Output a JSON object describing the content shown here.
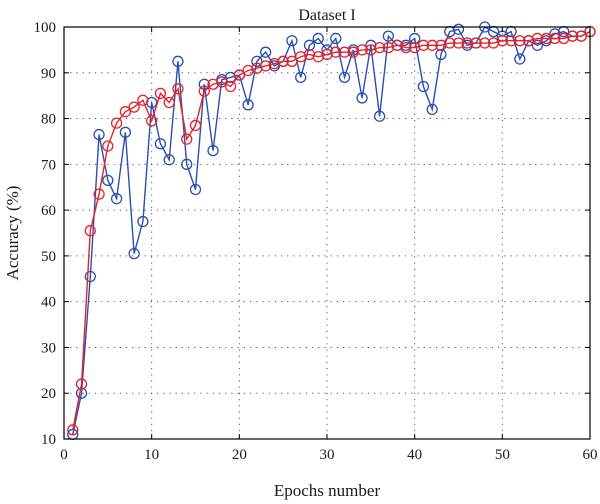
{
  "chart_data": {
    "type": "line",
    "title": "Dataset I",
    "xlabel": "Epochs number",
    "ylabel": "Accuracy (%)",
    "xlim": [
      0,
      60
    ],
    "ylim": [
      10,
      100
    ],
    "xticks": [
      0,
      10,
      20,
      30,
      40,
      50,
      60
    ],
    "yticks": [
      10,
      20,
      30,
      40,
      50,
      60,
      70,
      80,
      90,
      100
    ],
    "grid": true,
    "legend": "none",
    "series": [
      {
        "color": "#2a4fb0",
        "marker": "circle",
        "x": [
          1,
          2,
          3,
          4,
          5,
          6,
          7,
          8,
          9,
          10,
          11,
          12,
          13,
          14,
          15,
          16,
          17,
          18,
          19,
          20,
          21,
          22,
          23,
          24,
          25,
          26,
          27,
          28,
          29,
          30,
          31,
          32,
          33,
          34,
          35,
          36,
          37,
          38,
          39,
          40,
          41,
          42,
          43,
          44,
          45,
          46,
          47,
          48,
          49,
          50,
          51,
          52,
          53,
          54,
          55,
          56,
          57,
          58,
          59,
          60
        ],
        "values": [
          11,
          20,
          45.5,
          76.5,
          66.5,
          62.5,
          77,
          50.5,
          57.5,
          83.5,
          74.5,
          71,
          92.5,
          70,
          64.5,
          87.5,
          73,
          88.5,
          89,
          89.5,
          83,
          92.5,
          94.5,
          91.5,
          92.5,
          97,
          89,
          96,
          97.5,
          95,
          97.5,
          89,
          95,
          84.5,
          96,
          80.5,
          98,
          96,
          96,
          97.5,
          87,
          82,
          94,
          99,
          99.5,
          96,
          96.5,
          100,
          99,
          98,
          99,
          93,
          97,
          96,
          97,
          98.5,
          99,
          98,
          98,
          99
        ]
      },
      {
        "color": "#e0242b",
        "marker": "circle",
        "x": [
          1,
          2,
          3,
          4,
          5,
          6,
          7,
          8,
          9,
          10,
          11,
          12,
          13,
          14,
          15,
          16,
          17,
          18,
          19,
          20,
          21,
          22,
          23,
          24,
          25,
          26,
          27,
          28,
          29,
          30,
          31,
          32,
          33,
          34,
          35,
          36,
          37,
          38,
          39,
          40,
          41,
          42,
          43,
          44,
          45,
          46,
          47,
          48,
          49,
          50,
          51,
          52,
          53,
          54,
          55,
          56,
          57,
          58,
          59,
          60
        ],
        "values": [
          12,
          22,
          55.5,
          63.5,
          74,
          79,
          81.5,
          82.5,
          84,
          79.5,
          85.5,
          83.5,
          86.5,
          75.5,
          78.5,
          86,
          87.5,
          88,
          87,
          89.5,
          90.5,
          91,
          91.5,
          92,
          92.5,
          92.5,
          93.5,
          94,
          93.5,
          94,
          94.5,
          94.5,
          94.5,
          95,
          95,
          95.5,
          95.5,
          96,
          95.5,
          95.5,
          96,
          96,
          96,
          96.5,
          96.5,
          96.5,
          96.5,
          96.5,
          96.5,
          97,
          97,
          97,
          97,
          97.5,
          97.5,
          97.5,
          97.5,
          98,
          98,
          99
        ]
      }
    ]
  }
}
